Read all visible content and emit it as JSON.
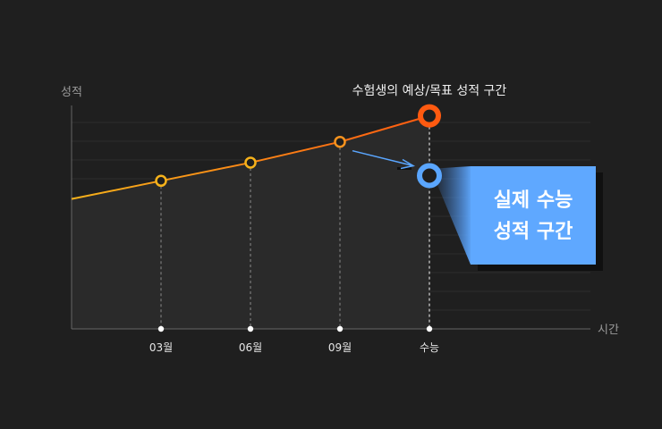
{
  "chart_data": {
    "type": "line",
    "title": "수험생의 예상/목표 성적 구간",
    "ylabel": "성적",
    "xlabel": "시간",
    "categories": [
      "03월",
      "06월",
      "09월",
      "수능"
    ],
    "series": [
      {
        "values": [
          2.1,
          2.8,
          3.6,
          4.6
        ]
      }
    ],
    "actual": {
      "category": "수능",
      "value": 2.3
    },
    "callout": {
      "line1": "실제 수능",
      "line2": "성적 구간"
    },
    "ylim": [
      -3.6,
      5.0
    ],
    "grid": true,
    "colors": {
      "line_start": "#f6b21b",
      "line_end": "#ff5a10",
      "actual": "#5aa6ff",
      "callout_bg": "#5fa8ff"
    }
  }
}
